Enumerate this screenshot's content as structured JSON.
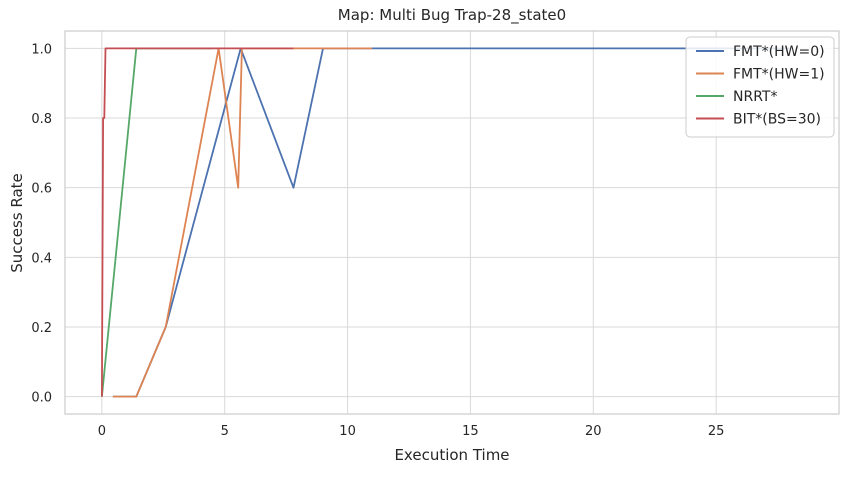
{
  "chart_data": {
    "type": "line",
    "title": "Map: Multi Bug Trap-28_state0",
    "xlabel": "Execution Time",
    "ylabel": "Success Rate",
    "xlim": [
      -1.5,
      30
    ],
    "ylim": [
      -0.05,
      1.05
    ],
    "xticks": [
      0,
      5,
      10,
      15,
      20,
      25
    ],
    "yticks": [
      0.0,
      0.2,
      0.4,
      0.6,
      0.8,
      1.0
    ],
    "xtick_labels": [
      "0",
      "5",
      "10",
      "15",
      "20",
      "25"
    ],
    "ytick_labels": [
      "0.0",
      "0.2",
      "0.4",
      "0.6",
      "0.8",
      "1.0"
    ],
    "grid": true,
    "legend_position": "top-right",
    "series": [
      {
        "name": "FMT*(HW=0)",
        "color": "#4c72b0",
        "points": [
          [
            0.45,
            0.0
          ],
          [
            1.4,
            0.0
          ],
          [
            2.6,
            0.2
          ],
          [
            5.65,
            1.0
          ],
          [
            7.8,
            0.6
          ],
          [
            9.0,
            1.0
          ],
          [
            28.0,
            1.0
          ]
        ]
      },
      {
        "name": "FMT*(HW=1)",
        "color": "#dd8452",
        "points": [
          [
            0.45,
            0.0
          ],
          [
            1.4,
            0.0
          ],
          [
            2.6,
            0.2
          ],
          [
            4.75,
            1.0
          ],
          [
            5.55,
            0.6
          ],
          [
            5.7,
            1.0
          ],
          [
            11.0,
            1.0
          ]
        ]
      },
      {
        "name": "NRRT*",
        "color": "#55a868",
        "points": [
          [
            0.0,
            0.0
          ],
          [
            1.4,
            1.0
          ],
          [
            4.5,
            1.0
          ]
        ]
      },
      {
        "name": "BIT*(BS=30)",
        "color": "#c44e52",
        "points": [
          [
            0.0,
            0.0
          ],
          [
            0.05,
            0.8
          ],
          [
            0.1,
            0.8
          ],
          [
            0.15,
            1.0
          ],
          [
            7.8,
            1.0
          ]
        ]
      }
    ]
  }
}
